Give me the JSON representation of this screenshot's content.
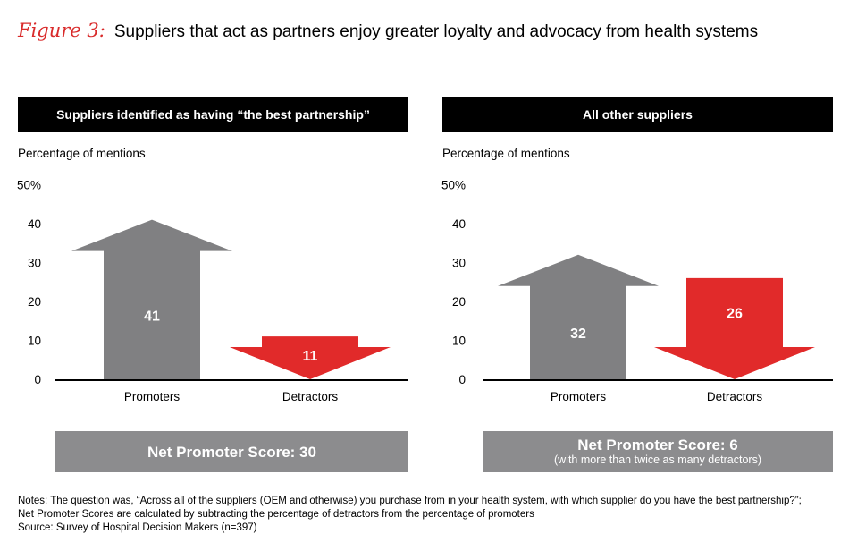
{
  "figure": {
    "label": "Figure 3:",
    "title": "Suppliers that act as partners enjoy greater loyalty and advocacy from health systems"
  },
  "panels": [
    {
      "header": "Suppliers identified as having “the best partnership”",
      "ylabel": "Percentage of mentions",
      "score_main": "Net Promoter Score: 30",
      "score_sub": ""
    },
    {
      "header": "All other suppliers",
      "ylabel": "Percentage of mentions",
      "score_main": "Net Promoter Score: 6",
      "score_sub": "(with more than twice as many detractors)"
    }
  ],
  "chart_data": [
    {
      "type": "bar",
      "title": "Suppliers identified as having “the best partnership”",
      "ylabel": "Percentage of mentions",
      "categories": [
        "Promoters",
        "Detractors"
      ],
      "values": [
        41,
        11
      ],
      "direction": [
        "up",
        "down"
      ],
      "colors": [
        "#808082",
        "#e12a2a"
      ],
      "ylim": [
        0,
        50
      ],
      "yticks": [
        "0",
        "10",
        "20",
        "30",
        "40",
        "50%"
      ]
    },
    {
      "type": "bar",
      "title": "All other suppliers",
      "ylabel": "Percentage of mentions",
      "categories": [
        "Promoters",
        "Detractors"
      ],
      "values": [
        32,
        26
      ],
      "direction": [
        "up",
        "down"
      ],
      "colors": [
        "#808082",
        "#e12a2a"
      ],
      "ylim": [
        0,
        50
      ],
      "yticks": [
        "0",
        "10",
        "20",
        "30",
        "40",
        "50%"
      ]
    }
  ],
  "notes": [
    "Notes: The question was, “Across all of the suppliers (OEM and otherwise) you purchase from in your health system, with which supplier do you have the best partnership?”;",
    "Net Promoter Scores are calculated by subtracting the percentage of detractors from the percentage of promoters",
    "Source: Survey of Hospital Decision Makers (n=397)"
  ]
}
